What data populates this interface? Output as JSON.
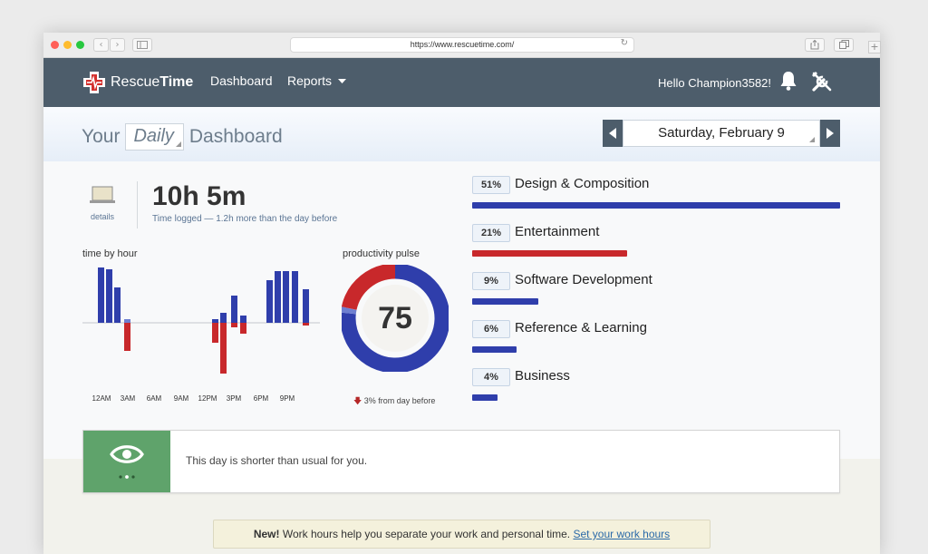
{
  "browser": {
    "url": "https://www.rescuetime.com/",
    "traffic_light_colors": [
      "#ff5f57",
      "#febc2e",
      "#28c840"
    ]
  },
  "app": {
    "logo_text_light": "Rescue",
    "logo_text_bold": "Time",
    "nav_dashboard": "Dashboard",
    "nav_reports": "Reports",
    "hello": "Hello Champion3582!"
  },
  "header": {
    "your": "Your",
    "period": "Daily",
    "dashboard": "Dashboard",
    "date": "Saturday, February 9"
  },
  "summary": {
    "details_label": "details",
    "total": "10h 5m",
    "total_sub": "Time logged — 1.2h more than the day before"
  },
  "time_by_hour": {
    "title": "time by hour",
    "tick_labels": [
      "12AM",
      "3AM",
      "6AM",
      "9AM",
      "12PM",
      "3PM",
      "6PM",
      "9PM"
    ]
  },
  "pulse": {
    "title": "productivity pulse",
    "value": "75",
    "change_arrow": "🡇",
    "change": "3% from day before"
  },
  "categories": [
    {
      "pct": "51%",
      "name": "Design & Composition",
      "fraction": 1.0,
      "color": "#2f3eab"
    },
    {
      "pct": "21%",
      "name": "Entertainment",
      "fraction": 0.42,
      "color": "#c8282b"
    },
    {
      "pct": "9%",
      "name": "Software Development",
      "fraction": 0.18,
      "color": "#2f3eab"
    },
    {
      "pct": "6%",
      "name": "Reference & Learning",
      "fraction": 0.12,
      "color": "#2f3eab"
    },
    {
      "pct": "4%",
      "name": "Business",
      "fraction": 0.07,
      "color": "#2f3eab"
    }
  ],
  "insight": {
    "text": "This day is shorter than usual for you."
  },
  "notice": {
    "bold": "New!",
    "text": " Work hours help you separate your work and personal time. ",
    "link": "Set your work hours"
  },
  "colors": {
    "productive": "#2f3eab",
    "distracting": "#c8282b",
    "neutral_light": "#6e7fd0",
    "appbar": "#4d5d6b",
    "insight_green": "#5fa36b"
  }
}
